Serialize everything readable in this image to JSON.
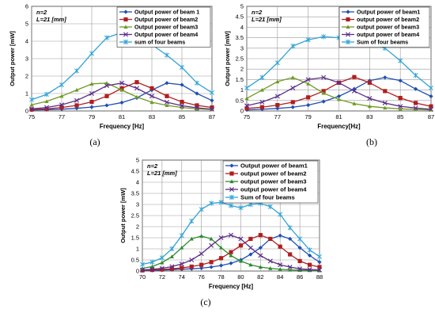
{
  "chart_data": [
    {
      "type": "line",
      "caption": "(a)",
      "annotation": [
        "n=2",
        "L=21 [mm]"
      ],
      "xlabel": "Frequency [Hz]",
      "ylabel": "Output power [mW]",
      "xlim": [
        75,
        87
      ],
      "ylim": [
        0,
        6
      ],
      "xticks": [
        75,
        77,
        79,
        81,
        83,
        85,
        87
      ],
      "yticks": [
        0,
        1,
        2,
        3,
        4,
        5,
        6
      ],
      "grid": true,
      "legend": "top-right",
      "series": [
        {
          "name": "Output power of beam 1",
          "color": "#1f4fb4",
          "marker": "diamond",
          "x": [
            75,
            76,
            77,
            78,
            79,
            80,
            81,
            82,
            83,
            84,
            85,
            86,
            87
          ],
          "y": [
            0.05,
            0.07,
            0.1,
            0.15,
            0.22,
            0.32,
            0.48,
            0.75,
            1.2,
            1.6,
            1.5,
            1.0,
            0.6
          ]
        },
        {
          "name": "Output power of beam2",
          "color": "#b01e1e",
          "marker": "square",
          "x": [
            75,
            76,
            77,
            78,
            79,
            80,
            81,
            82,
            83,
            84,
            85,
            86,
            87
          ],
          "y": [
            0.08,
            0.12,
            0.2,
            0.32,
            0.52,
            0.85,
            1.3,
            1.65,
            1.3,
            0.85,
            0.52,
            0.32,
            0.2
          ]
        },
        {
          "name": "Output power of beam3",
          "color": "#6f9a22",
          "marker": "triangle",
          "x": [
            75,
            76,
            77,
            78,
            79,
            80,
            81,
            82,
            83,
            84,
            85,
            86,
            87
          ],
          "y": [
            0.35,
            0.55,
            0.85,
            1.2,
            1.55,
            1.6,
            1.2,
            0.8,
            0.5,
            0.32,
            0.2,
            0.12,
            0.08
          ]
        },
        {
          "name": "Output power of beam4",
          "color": "#5b2c87",
          "marker": "x",
          "x": [
            75,
            76,
            77,
            78,
            79,
            80,
            81,
            82,
            83,
            84,
            85,
            86,
            87
          ],
          "y": [
            0.12,
            0.2,
            0.35,
            0.6,
            1.0,
            1.45,
            1.6,
            1.3,
            0.85,
            0.5,
            0.3,
            0.18,
            0.1
          ]
        },
        {
          "name": "sum of four beams",
          "color": "#2fa3d6",
          "marker": "star",
          "x": [
            75,
            76,
            77,
            78,
            79,
            80,
            81,
            82,
            83,
            84,
            85,
            86,
            87
          ],
          "y": [
            0.65,
            0.95,
            1.5,
            2.3,
            3.3,
            4.2,
            4.5,
            4.3,
            3.8,
            3.2,
            2.5,
            1.6,
            1.05
          ]
        }
      ]
    },
    {
      "type": "line",
      "caption": "(b)",
      "annotation": [
        "n=2",
        "L=21 [mm]"
      ],
      "xlabel": "Frequency[Hz]",
      "ylabel": "Output power [mW]",
      "xlim": [
        75,
        87
      ],
      "ylim": [
        0,
        5
      ],
      "xticks": [
        75,
        77,
        79,
        81,
        83,
        85,
        87
      ],
      "yticks": [
        0,
        0.5,
        1,
        1.5,
        2,
        2.5,
        3,
        3.5,
        4,
        4.5,
        5
      ],
      "grid": true,
      "legend": "top-right",
      "series": [
        {
          "name": "Output power of beam1",
          "color": "#1f4fb4",
          "marker": "diamond",
          "x": [
            75,
            76,
            77,
            78,
            79,
            80,
            81,
            82,
            83,
            84,
            85,
            86,
            87
          ],
          "y": [
            0.05,
            0.08,
            0.12,
            0.18,
            0.28,
            0.45,
            0.7,
            1.05,
            1.45,
            1.6,
            1.45,
            1.05,
            0.7
          ]
        },
        {
          "name": "output power of beam2",
          "color": "#b01e1e",
          "marker": "square",
          "x": [
            75,
            76,
            77,
            78,
            79,
            80,
            81,
            82,
            83,
            84,
            85,
            86,
            87
          ],
          "y": [
            0.12,
            0.18,
            0.28,
            0.42,
            0.65,
            0.95,
            1.35,
            1.62,
            1.35,
            0.95,
            0.62,
            0.38,
            0.22
          ]
        },
        {
          "name": "output power of beam3",
          "color": "#6f9a22",
          "marker": "triangle",
          "x": [
            75,
            76,
            77,
            78,
            79,
            80,
            81,
            82,
            83,
            84,
            85,
            86,
            87
          ],
          "y": [
            0.6,
            1.0,
            1.4,
            1.6,
            1.3,
            0.85,
            0.55,
            0.35,
            0.22,
            0.15,
            0.1,
            0.07,
            0.05
          ]
        },
        {
          "name": "output power of beam4",
          "color": "#5b2c87",
          "marker": "x",
          "x": [
            75,
            76,
            77,
            78,
            79,
            80,
            81,
            82,
            83,
            84,
            85,
            86,
            87
          ],
          "y": [
            0.25,
            0.42,
            0.7,
            1.1,
            1.5,
            1.6,
            1.35,
            0.95,
            0.6,
            0.38,
            0.22,
            0.14,
            0.08
          ]
        },
        {
          "name": "Sum of four beams",
          "color": "#2fa3d6",
          "marker": "star",
          "x": [
            75,
            76,
            77,
            78,
            79,
            80,
            81,
            82,
            83,
            84,
            85,
            86,
            87
          ],
          "y": [
            1.1,
            1.6,
            2.3,
            3.1,
            3.4,
            3.55,
            3.5,
            3.45,
            3.3,
            3.0,
            2.4,
            1.7,
            1.1
          ]
        }
      ]
    },
    {
      "type": "line",
      "caption": "(c)",
      "annotation": [
        "n=2",
        "L=21 [mm]"
      ],
      "xlabel": "Frequency [Hz]",
      "ylabel": "Output power [mW]",
      "xlim": [
        70,
        88
      ],
      "ylim": [
        0,
        5
      ],
      "xticks": [
        70,
        72,
        74,
        76,
        78,
        80,
        82,
        84,
        86,
        88
      ],
      "yticks": [
        0,
        0.5,
        1,
        1.5,
        2,
        2.5,
        3,
        3.5,
        4,
        4.5,
        5
      ],
      "grid": true,
      "legend": "top-right",
      "series": [
        {
          "name": "Output power of beam1",
          "color": "#1f4fb4",
          "marker": "diamond",
          "x": [
            70,
            71,
            72,
            73,
            74,
            75,
            76,
            77,
            78,
            79,
            80,
            81,
            82,
            83,
            84,
            85,
            86,
            87,
            88
          ],
          "y": [
            0.02,
            0.03,
            0.04,
            0.06,
            0.08,
            0.1,
            0.13,
            0.18,
            0.25,
            0.35,
            0.5,
            0.75,
            1.05,
            1.45,
            1.6,
            1.45,
            1.05,
            0.7,
            0.4
          ]
        },
        {
          "name": "output power of beam2",
          "color": "#b01e1e",
          "marker": "square",
          "x": [
            70,
            71,
            72,
            73,
            74,
            75,
            76,
            77,
            78,
            79,
            80,
            81,
            82,
            83,
            84,
            85,
            86,
            87,
            88
          ],
          "y": [
            0.03,
            0.05,
            0.07,
            0.1,
            0.14,
            0.2,
            0.28,
            0.4,
            0.58,
            0.85,
            1.15,
            1.45,
            1.62,
            1.45,
            1.1,
            0.75,
            0.45,
            0.28,
            0.18
          ]
        },
        {
          "name": "output power of beam3",
          "color": "#2d8a2d",
          "marker": "triangle",
          "x": [
            70,
            71,
            72,
            73,
            74,
            75,
            76,
            77,
            78,
            79,
            80,
            81,
            82,
            83,
            84,
            85,
            86,
            87,
            88
          ],
          "y": [
            0.12,
            0.2,
            0.38,
            0.65,
            1.05,
            1.45,
            1.58,
            1.45,
            1.05,
            0.7,
            0.45,
            0.28,
            0.18,
            0.12,
            0.08,
            0.05,
            0.04,
            0.03,
            0.02
          ]
        },
        {
          "name": "output power of beam4",
          "color": "#5b2c87",
          "marker": "x",
          "x": [
            70,
            71,
            72,
            73,
            74,
            75,
            76,
            77,
            78,
            79,
            80,
            81,
            82,
            83,
            84,
            85,
            86,
            87,
            88
          ],
          "y": [
            0.05,
            0.08,
            0.12,
            0.2,
            0.32,
            0.5,
            0.78,
            1.15,
            1.5,
            1.62,
            1.45,
            1.05,
            0.7,
            0.45,
            0.28,
            0.18,
            0.1,
            0.07,
            0.05
          ]
        },
        {
          "name": "Sum of four beams",
          "color": "#2fa3d6",
          "marker": "star",
          "x": [
            70,
            71,
            72,
            73,
            74,
            75,
            76,
            77,
            78,
            79,
            80,
            81,
            82,
            83,
            84,
            85,
            86,
            87,
            88
          ],
          "y": [
            0.3,
            0.4,
            0.6,
            1.0,
            1.6,
            2.25,
            2.78,
            3.05,
            3.1,
            2.95,
            2.85,
            3.0,
            3.05,
            2.9,
            2.55,
            1.95,
            1.45,
            0.95,
            0.65
          ]
        }
      ]
    }
  ]
}
